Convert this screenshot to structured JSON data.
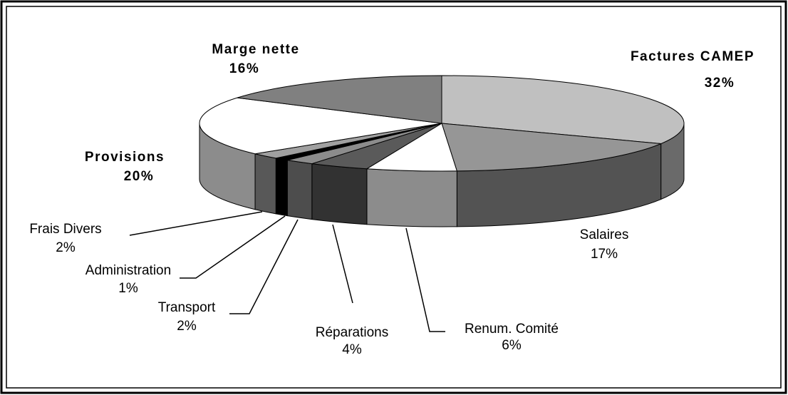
{
  "chart_data": {
    "type": "pie3d",
    "categories": [
      "Factures CAMEP",
      "Salaires",
      "Renum. Comité",
      "Réparations",
      "Transport",
      "Administration",
      "Frais Divers",
      "Provisions",
      "Marge nette"
    ],
    "values": [
      32,
      17,
      6,
      4,
      2,
      1,
      2,
      20,
      16
    ],
    "value_labels": [
      "32%",
      "17%",
      "6%",
      "4%",
      "2%",
      "1%",
      "2%",
      "20%",
      "16%"
    ],
    "colors": [
      "#c0c0c0",
      "#969696",
      "#ffffff",
      "#5a5a5a",
      "#8c8c8c",
      "#000000",
      "#a0a0a0",
      "#ffffff",
      "#808080"
    ]
  }
}
